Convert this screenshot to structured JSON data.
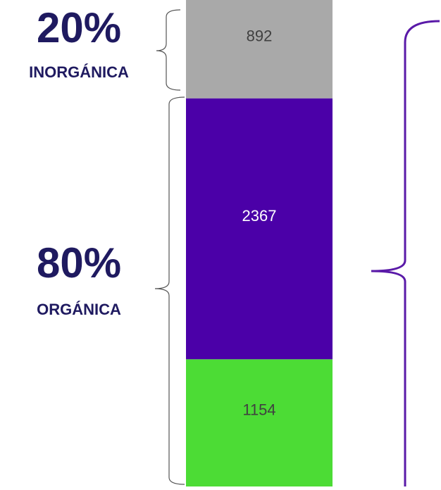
{
  "chart_data": {
    "type": "bar",
    "stacked": true,
    "categories": [
      null
    ],
    "series": [
      {
        "color": "#4cdc35",
        "values": [
          1154
        ]
      },
      {
        "color": "#4b00a8",
        "values": [
          2367
        ]
      },
      {
        "color": "#a9a9a9",
        "values": [
          892
        ]
      }
    ],
    "annotations": [
      {
        "text": "20%",
        "label": "INORGÁNICA"
      },
      {
        "text": "80%",
        "label": "ORGÁNICA"
      }
    ]
  }
}
